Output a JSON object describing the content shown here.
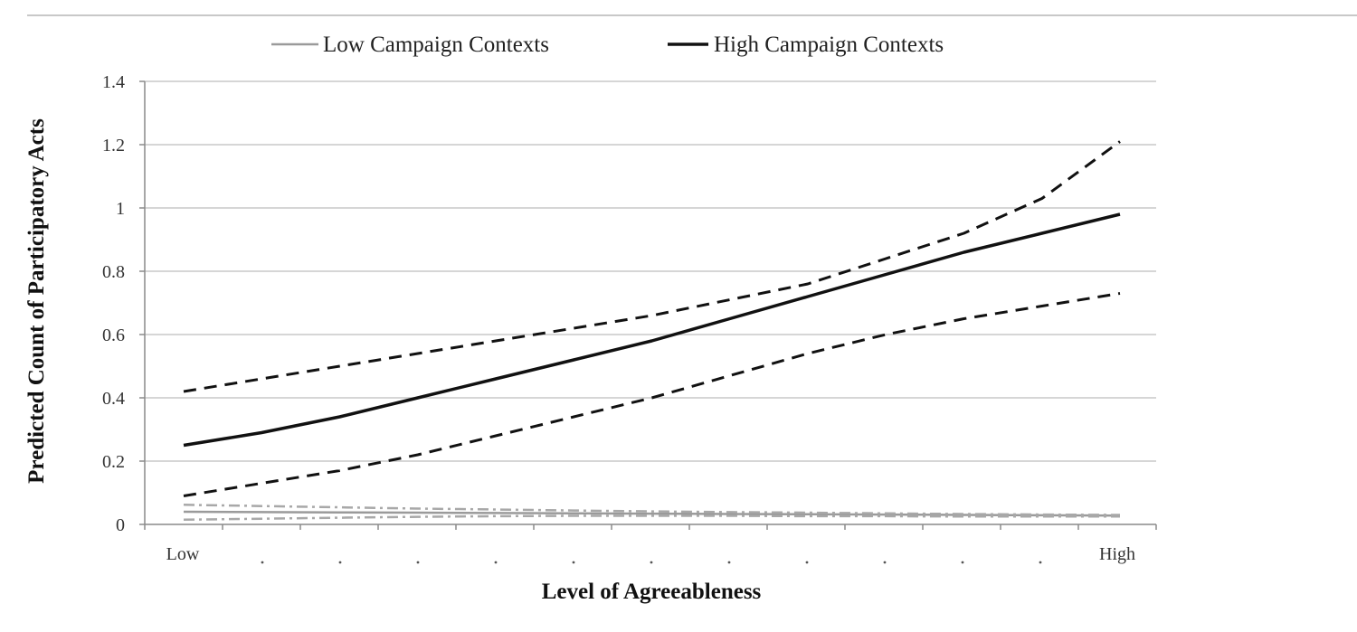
{
  "chart_data": {
    "type": "line",
    "title": "",
    "xlabel": "Level of Agreeableness",
    "ylabel": "Predicted Count of Participatory Acts",
    "ylim": [
      0,
      1.4
    ],
    "y_ticks": [
      "0",
      "0.2",
      "0.4",
      "0.6",
      "0.8",
      "1",
      "1.2",
      "1.4"
    ],
    "x_tick_labels": [
      "Low",
      "High"
    ],
    "x": [
      0,
      0.0833,
      0.1667,
      0.25,
      0.3333,
      0.4167,
      0.5,
      0.5833,
      0.6667,
      0.75,
      0.8333,
      0.9167,
      1.0
    ],
    "grid": true,
    "legend_position": "top",
    "series": [
      {
        "name": "Low Campaign Contexts",
        "color": "#9a9a9a",
        "style": "solid",
        "values": [
          0.04,
          0.039,
          0.038,
          0.037,
          0.036,
          0.035,
          0.034,
          0.033,
          0.032,
          0.031,
          0.03,
          0.029,
          0.028
        ]
      },
      {
        "name": "",
        "role": "Low Campaign Contexts upper bound",
        "color": "#a8a8a8",
        "style": "dashdot",
        "values": [
          0.062,
          0.058,
          0.054,
          0.05,
          0.047,
          0.044,
          0.041,
          0.039,
          0.037,
          0.035,
          0.033,
          0.031,
          0.03
        ]
      },
      {
        "name": "",
        "role": "Low Campaign Contexts lower bound",
        "color": "#a8a8a8",
        "style": "dashdot",
        "values": [
          0.015,
          0.018,
          0.021,
          0.024,
          0.026,
          0.027,
          0.027,
          0.027,
          0.026,
          0.026,
          0.025,
          0.025,
          0.025
        ]
      },
      {
        "name": "High Campaign Contexts",
        "color": "#111111",
        "style": "solid",
        "values": [
          0.25,
          0.29,
          0.34,
          0.4,
          0.46,
          0.52,
          0.58,
          0.65,
          0.72,
          0.79,
          0.86,
          0.92,
          0.98
        ]
      },
      {
        "name": "",
        "role": "High Campaign Contexts upper bound",
        "color": "#111111",
        "style": "dashed",
        "values": [
          0.42,
          0.46,
          0.5,
          0.54,
          0.58,
          0.62,
          0.66,
          0.71,
          0.76,
          0.84,
          0.92,
          1.03,
          1.21
        ]
      },
      {
        "name": "",
        "role": "High Campaign Contexts lower bound",
        "color": "#111111",
        "style": "dashed",
        "values": [
          0.09,
          0.13,
          0.17,
          0.22,
          0.28,
          0.34,
          0.4,
          0.47,
          0.54,
          0.6,
          0.65,
          0.69,
          0.73
        ]
      }
    ]
  }
}
